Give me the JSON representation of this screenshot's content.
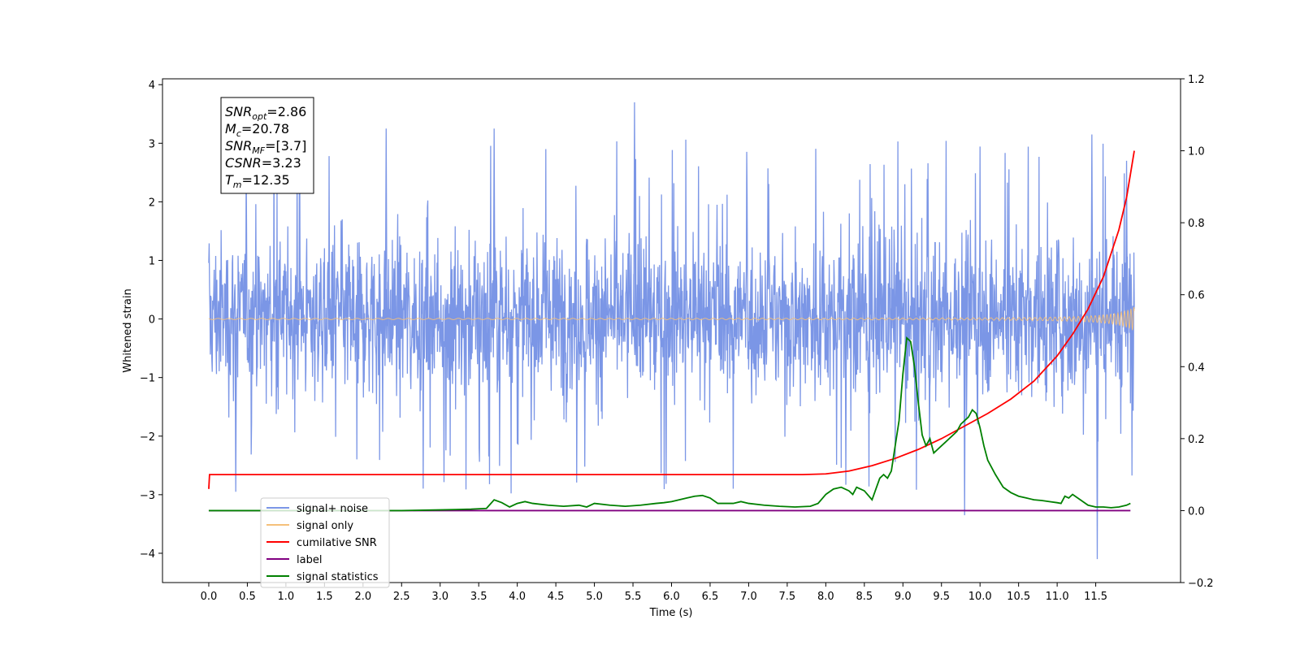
{
  "chart_data": {
    "type": "line",
    "xlabel": "Time (s)",
    "ylabel": "Whitened strain",
    "xlim": [
      -0.6,
      12.6
    ],
    "ylim": [
      -4.5,
      4.1
    ],
    "y2lim": [
      -0.2,
      1.2
    ],
    "x_ticks": [
      "0.0",
      "0.5",
      "1.0",
      "1.5",
      "2.0",
      "2.5",
      "3.0",
      "3.5",
      "4.0",
      "4.5",
      "5.0",
      "5.5",
      "6.0",
      "6.5",
      "7.0",
      "7.5",
      "8.0",
      "8.5",
      "9.0",
      "9.5",
      "10.0",
      "10.5",
      "11.0",
      "11.5"
    ],
    "x_tick_values": [
      0.0,
      0.5,
      1.0,
      1.5,
      2.0,
      2.5,
      3.0,
      3.5,
      4.0,
      4.5,
      5.0,
      5.5,
      6.0,
      6.5,
      7.0,
      7.5,
      8.0,
      8.5,
      9.0,
      9.5,
      10.0,
      10.5,
      11.0,
      11.5
    ],
    "y_ticks": [
      "−4",
      "−3",
      "−2",
      "−1",
      "0",
      "1",
      "2",
      "3",
      "4"
    ],
    "y_tick_values": [
      -4,
      -3,
      -2,
      -1,
      0,
      1,
      2,
      3,
      4
    ],
    "y2_ticks": [
      "−0.2",
      "0.0",
      "0.2",
      "0.4",
      "0.6",
      "0.8",
      "1.0",
      "1.2"
    ],
    "y2_tick_values": [
      -0.2,
      0.0,
      0.2,
      0.4,
      0.6,
      0.8,
      1.0,
      1.2
    ],
    "grid": false,
    "legend_position": "bottom-left",
    "annotation": [
      {
        "base": "SNR",
        "sub": "opt",
        "value": "=2.86"
      },
      {
        "base": "M",
        "sub": "c",
        "value": "=20.78"
      },
      {
        "base": "SNR",
        "sub": "MF",
        "value": "=[3.7]"
      },
      {
        "base": "CSNR",
        "sub": "",
        "value": "=3.23"
      },
      {
        "base": "T",
        "sub": "m",
        "value": "=12.35"
      }
    ],
    "series": [
      {
        "name": "signal+ noise",
        "color": "#7b96e6",
        "axis": "left",
        "kind": "noise",
        "x_range": [
          0.0,
          12.0
        ],
        "typical_range": [
          -1.7,
          1.8
        ],
        "extremes": [
          [
            5.52,
            3.7
          ],
          [
            11.52,
            -4.1
          ],
          [
            9.8,
            -3.35
          ],
          [
            0.35,
            -2.95
          ],
          [
            11.45,
            3.15
          ],
          [
            2.3,
            3.25
          ],
          [
            3.7,
            3.25
          ],
          [
            11.9,
            2.7
          ]
        ]
      },
      {
        "name": "signal only",
        "color": "#f5c07a",
        "axis": "left",
        "kind": "chirp",
        "x_range": [
          0.0,
          12.0
        ],
        "amplitude_end": 0.2
      },
      {
        "name": "cumilative SNR",
        "color": "#ff0000",
        "axis": "right",
        "x": [
          0.0,
          0.01,
          5.0,
          7.7,
          8.0,
          8.3,
          8.6,
          8.9,
          9.2,
          9.5,
          9.8,
          10.1,
          10.4,
          10.7,
          11.0,
          11.2,
          11.4,
          11.6,
          11.8,
          11.9,
          12.0
        ],
        "values": [
          0.06,
          0.1,
          0.1,
          0.1,
          0.102,
          0.11,
          0.125,
          0.145,
          0.17,
          0.2,
          0.235,
          0.27,
          0.31,
          0.36,
          0.43,
          0.49,
          0.56,
          0.65,
          0.78,
          0.87,
          1.0
        ]
      },
      {
        "name": "label",
        "color": "#800080",
        "axis": "right",
        "x": [
          0.0,
          11.95
        ],
        "values": [
          0.0,
          0.0
        ]
      },
      {
        "name": "signal statistics",
        "color": "#008000",
        "axis": "right",
        "x": [
          0.0,
          0.5,
          1.0,
          1.5,
          2.0,
          2.5,
          3.0,
          3.2,
          3.4,
          3.6,
          3.7,
          3.8,
          3.9,
          4.0,
          4.1,
          4.2,
          4.4,
          4.6,
          4.8,
          4.9,
          5.0,
          5.2,
          5.4,
          5.6,
          5.8,
          5.9,
          6.0,
          6.1,
          6.2,
          6.3,
          6.4,
          6.5,
          6.6,
          6.8,
          6.9,
          7.0,
          7.2,
          7.4,
          7.6,
          7.8,
          7.9,
          8.0,
          8.1,
          8.2,
          8.3,
          8.35,
          8.4,
          8.5,
          8.6,
          8.65,
          8.7,
          8.75,
          8.8,
          8.85,
          8.9,
          8.95,
          9.0,
          9.05,
          9.1,
          9.15,
          9.2,
          9.25,
          9.3,
          9.35,
          9.4,
          9.45,
          9.5,
          9.55,
          9.6,
          9.65,
          9.7,
          9.75,
          9.8,
          9.85,
          9.9,
          9.95,
          10.0,
          10.05,
          10.1,
          10.2,
          10.3,
          10.4,
          10.5,
          10.6,
          10.7,
          10.8,
          10.9,
          11.0,
          11.05,
          11.1,
          11.15,
          11.2,
          11.3,
          11.4,
          11.5,
          11.6,
          11.7,
          11.8,
          11.9,
          11.95
        ],
        "values": [
          0.0,
          0.0,
          0.0,
          0.0,
          0.0,
          0.0,
          0.002,
          0.003,
          0.004,
          0.006,
          0.03,
          0.022,
          0.01,
          0.02,
          0.025,
          0.02,
          0.015,
          0.012,
          0.015,
          0.01,
          0.02,
          0.015,
          0.012,
          0.015,
          0.02,
          0.022,
          0.025,
          0.03,
          0.035,
          0.04,
          0.042,
          0.035,
          0.02,
          0.02,
          0.025,
          0.02,
          0.015,
          0.012,
          0.01,
          0.012,
          0.02,
          0.045,
          0.06,
          0.065,
          0.055,
          0.045,
          0.065,
          0.055,
          0.03,
          0.06,
          0.09,
          0.1,
          0.09,
          0.11,
          0.18,
          0.25,
          0.38,
          0.48,
          0.47,
          0.4,
          0.3,
          0.21,
          0.18,
          0.2,
          0.16,
          0.17,
          0.18,
          0.19,
          0.2,
          0.21,
          0.22,
          0.24,
          0.25,
          0.26,
          0.28,
          0.27,
          0.23,
          0.18,
          0.14,
          0.1,
          0.065,
          0.05,
          0.04,
          0.035,
          0.03,
          0.028,
          0.025,
          0.022,
          0.02,
          0.04,
          0.035,
          0.045,
          0.03,
          0.015,
          0.01,
          0.01,
          0.008,
          0.01,
          0.015,
          0.02
        ]
      }
    ]
  }
}
